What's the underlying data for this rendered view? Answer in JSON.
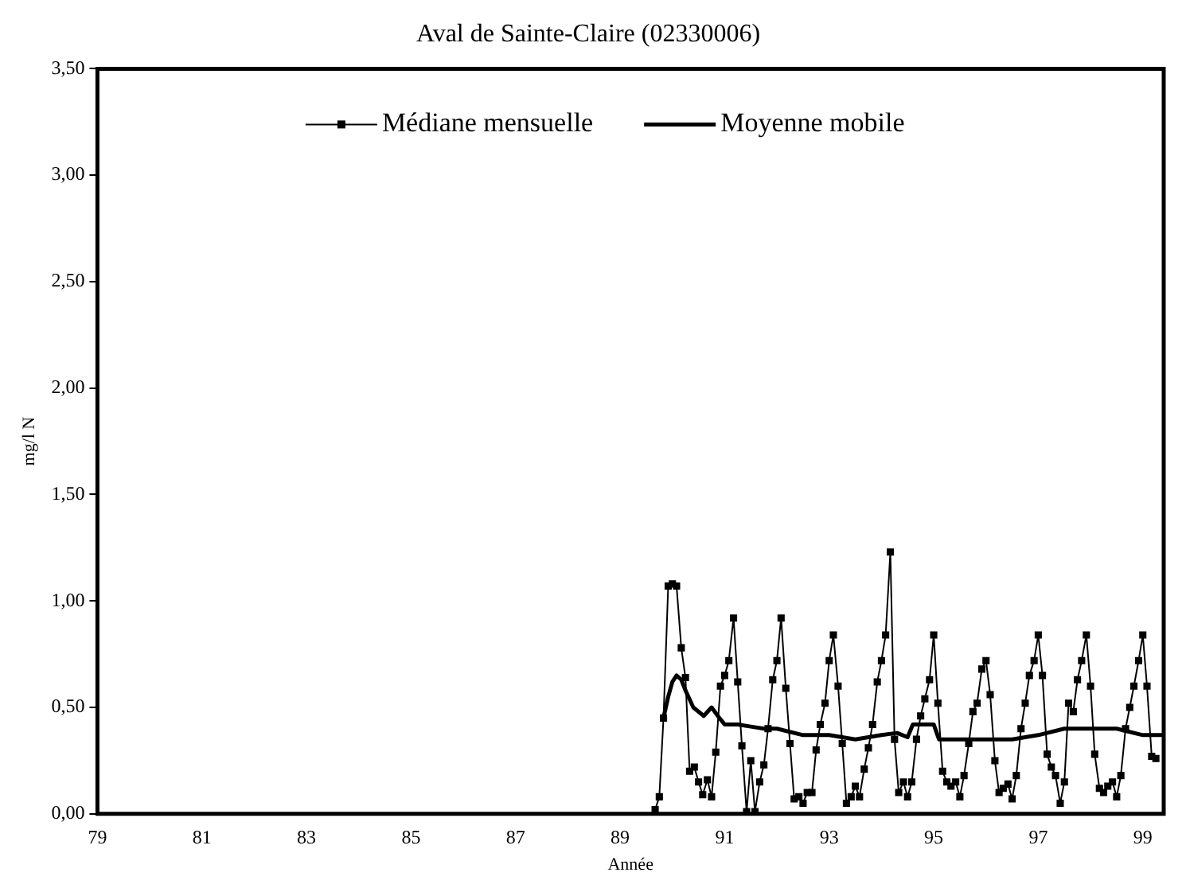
{
  "chart_data": {
    "type": "line",
    "title": "Aval de Sainte-Claire (02330006)",
    "xlabel": "Année",
    "ylabel": "mg/l N",
    "xlim": [
      79,
      99.4
    ],
    "xticks": [
      79,
      81,
      83,
      85,
      87,
      89,
      91,
      93,
      95,
      97,
      99
    ],
    "ylim": [
      0,
      3.5
    ],
    "yticks": [
      {
        "value": 0,
        "label": "0,00"
      },
      {
        "value": 0.5,
        "label": "0,50"
      },
      {
        "value": 1,
        "label": "1,00"
      },
      {
        "value": 1.5,
        "label": "1,50"
      },
      {
        "value": 2,
        "label": "2,00"
      },
      {
        "value": 2.5,
        "label": "2,50"
      },
      {
        "value": 3,
        "label": "3,00"
      },
      {
        "value": 3.5,
        "label": "3,50"
      }
    ],
    "grid": false,
    "legend": "top",
    "series": [
      {
        "name": "Médiane mensuelle",
        "color": "#000000",
        "marker": "square",
        "x": [
          89.67,
          89.75,
          89.83,
          89.92,
          90.0,
          90.08,
          90.17,
          90.25,
          90.33,
          90.42,
          90.5,
          90.58,
          90.67,
          90.75,
          90.83,
          90.92,
          91.0,
          91.08,
          91.17,
          91.25,
          91.33,
          91.42,
          91.5,
          91.58,
          91.67,
          91.75,
          91.83,
          91.92,
          92.0,
          92.08,
          92.17,
          92.25,
          92.33,
          92.42,
          92.5,
          92.58,
          92.67,
          92.75,
          92.83,
          92.92,
          93.0,
          93.08,
          93.17,
          93.25,
          93.33,
          93.42,
          93.5,
          93.58,
          93.67,
          93.75,
          93.83,
          93.92,
          94.0,
          94.08,
          94.17,
          94.25,
          94.33,
          94.42,
          94.5,
          94.58,
          94.67,
          94.75,
          94.83,
          94.92,
          95.0,
          95.08,
          95.17,
          95.25,
          95.33,
          95.42,
          95.5,
          95.58,
          95.67,
          95.75,
          95.83,
          95.92,
          96.0,
          96.08,
          96.17,
          96.25,
          96.33,
          96.42,
          96.5,
          96.58,
          96.67,
          96.75,
          96.83,
          96.92,
          97.0,
          97.08,
          97.17,
          97.25,
          97.33,
          97.42,
          97.5,
          97.58,
          97.67,
          97.75,
          97.83,
          97.92,
          98.0,
          98.08,
          98.17,
          98.25,
          98.33,
          98.42,
          98.5,
          98.58,
          98.67,
          98.75,
          98.83,
          98.92,
          99.0,
          99.08,
          99.17,
          99.25
        ],
        "values": [
          0.02,
          0.08,
          0.45,
          1.07,
          1.08,
          1.07,
          0.78,
          0.64,
          0.2,
          0.22,
          0.15,
          0.09,
          0.16,
          0.08,
          0.29,
          0.6,
          0.65,
          0.72,
          0.92,
          0.62,
          0.32,
          0.01,
          0.25,
          0.01,
          0.15,
          0.23,
          0.4,
          0.63,
          0.72,
          0.92,
          0.59,
          0.33,
          0.07,
          0.08,
          0.05,
          0.1,
          0.1,
          0.3,
          0.42,
          0.52,
          0.72,
          0.84,
          0.6,
          0.33,
          0.05,
          0.08,
          0.13,
          0.08,
          0.21,
          0.31,
          0.42,
          0.62,
          0.72,
          0.84,
          1.23,
          0.35,
          0.1,
          0.15,
          0.08,
          0.15,
          0.35,
          0.46,
          0.54,
          0.63,
          0.84,
          0.52,
          0.2,
          0.15,
          0.13,
          0.15,
          0.08,
          0.18,
          0.33,
          0.48,
          0.52,
          0.68,
          0.72,
          0.56,
          0.25,
          0.1,
          0.12,
          0.14,
          0.07,
          0.18,
          0.4,
          0.52,
          0.65,
          0.72,
          0.84,
          0.65,
          0.28,
          0.22,
          0.18,
          0.05,
          0.15,
          0.52,
          0.48,
          0.63,
          0.72,
          0.84,
          0.6,
          0.28,
          0.12,
          0.1,
          0.13,
          0.15,
          0.08,
          0.18,
          0.4,
          0.5,
          0.6,
          0.72,
          0.84,
          0.6,
          0.27,
          0.26
        ]
      },
      {
        "name": "Moyenne mobile",
        "color": "#000000",
        "marker": "none",
        "x": [
          89.83,
          89.92,
          90.0,
          90.08,
          90.17,
          90.25,
          90.4,
          90.6,
          90.75,
          90.9,
          91.0,
          91.25,
          91.5,
          91.75,
          92.0,
          92.5,
          93.0,
          93.5,
          94.0,
          94.3,
          94.5,
          94.6,
          95.0,
          95.1,
          95.5,
          96.0,
          96.5,
          97.0,
          97.5,
          98.0,
          98.5,
          99.0,
          99.4
        ],
        "values": [
          0.45,
          0.55,
          0.62,
          0.65,
          0.63,
          0.58,
          0.5,
          0.46,
          0.5,
          0.45,
          0.42,
          0.42,
          0.41,
          0.4,
          0.4,
          0.37,
          0.37,
          0.35,
          0.37,
          0.38,
          0.36,
          0.42,
          0.42,
          0.35,
          0.35,
          0.35,
          0.35,
          0.37,
          0.4,
          0.4,
          0.4,
          0.37,
          0.37
        ]
      }
    ]
  }
}
